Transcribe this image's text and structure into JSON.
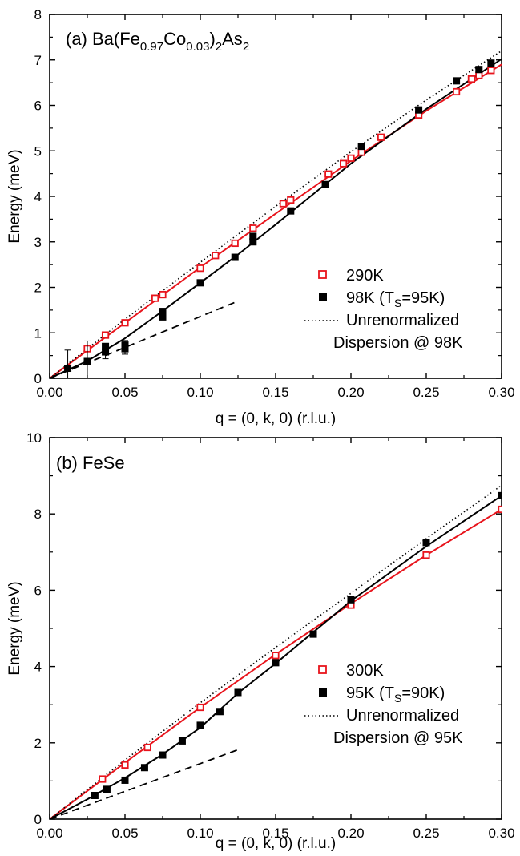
{
  "chart_data": [
    {
      "type": "scatter",
      "panel": "(a)",
      "title_parts": {
        "prefix": "(a) Ba(Fe",
        "sub1": "0.97",
        "mid": "Co",
        "sub2": "0.03",
        "close": ")",
        "sub3": "2",
        "suffix": "As",
        "sub4": "2"
      },
      "xlabel": "q = (0, k, 0) (r.l.u.)",
      "ylabel": "Energy (meV)",
      "xlim": [
        0.0,
        0.3
      ],
      "ylim": [
        0,
        8
      ],
      "xticks": [
        "0.00",
        "0.05",
        "0.10",
        "0.15",
        "0.20",
        "0.25",
        "0.30"
      ],
      "yticks": [
        "0",
        "1",
        "2",
        "3",
        "4",
        "5",
        "6",
        "7",
        "8"
      ],
      "series": [
        {
          "name": "290K",
          "color": "#e8141c",
          "marker": "open-square",
          "points": [
            [
              0.025,
              0.65
            ],
            [
              0.037,
              0.95
            ],
            [
              0.05,
              1.22
            ],
            [
              0.07,
              1.76
            ],
            [
              0.075,
              1.84
            ],
            [
              0.1,
              2.42
            ],
            [
              0.11,
              2.7
            ],
            [
              0.123,
              2.97
            ],
            [
              0.135,
              3.3
            ],
            [
              0.155,
              3.84
            ],
            [
              0.16,
              3.92
            ],
            [
              0.185,
              4.49
            ],
            [
              0.195,
              4.72
            ],
            [
              0.2,
              4.84
            ],
            [
              0.207,
              4.97
            ],
            [
              0.22,
              5.3
            ],
            [
              0.245,
              5.79
            ],
            [
              0.27,
              6.3
            ],
            [
              0.28,
              6.58
            ],
            [
              0.285,
              6.66
            ],
            [
              0.293,
              6.77
            ]
          ],
          "fit": [
            [
              0.0,
              0.0
            ],
            [
              0.05,
              1.22
            ],
            [
              0.1,
              2.44
            ],
            [
              0.15,
              3.62
            ],
            [
              0.2,
              4.78
            ],
            [
              0.25,
              5.88
            ],
            [
              0.3,
              6.9
            ]
          ]
        },
        {
          "name": "98K (T",
          "name_sub": "S",
          "name_suffix": "=95K)",
          "color": "#000000",
          "marker": "filled-square",
          "points": [
            [
              0.012,
              0.22
            ],
            [
              0.025,
              0.37
            ],
            [
              0.037,
              0.58
            ],
            [
              0.037,
              0.7
            ],
            [
              0.05,
              0.65
            ],
            [
              0.05,
              0.73
            ],
            [
              0.075,
              1.35
            ],
            [
              0.075,
              1.47
            ],
            [
              0.1,
              2.1
            ],
            [
              0.123,
              2.66
            ],
            [
              0.135,
              3.0
            ],
            [
              0.135,
              3.12
            ],
            [
              0.16,
              3.68
            ],
            [
              0.183,
              4.26
            ],
            [
              0.207,
              5.1
            ],
            [
              0.245,
              5.9
            ],
            [
              0.27,
              6.54
            ],
            [
              0.285,
              6.79
            ],
            [
              0.293,
              6.93
            ]
          ],
          "error_bars": [
            [
              0.012,
              0.22,
              0.4
            ],
            [
              0.025,
              0.37,
              0.45
            ],
            [
              0.037,
              0.58,
              0.15
            ],
            [
              0.05,
              0.65,
              0.12
            ],
            [
              0.05,
              0.73,
              0.1
            ]
          ],
          "fit": [
            [
              0.0,
              0.0
            ],
            [
              0.025,
              0.38
            ],
            [
              0.05,
              0.88
            ],
            [
              0.075,
              1.48
            ],
            [
              0.1,
              2.1
            ],
            [
              0.125,
              2.72
            ],
            [
              0.15,
              3.38
            ],
            [
              0.2,
              4.72
            ],
            [
              0.25,
              5.92
            ],
            [
              0.3,
              7.02
            ]
          ],
          "low_q_line": [
            [
              0.0,
              0.0
            ],
            [
              0.123,
              1.67
            ]
          ]
        },
        {
          "name": "Unrenormalized",
          "name_line2": "Dispersion @ 98K",
          "color": "#000000",
          "style": "dotted",
          "line": [
            [
              0.0,
              0.0
            ],
            [
              0.05,
              1.3
            ],
            [
              0.1,
              2.55
            ],
            [
              0.15,
              3.78
            ],
            [
              0.2,
              4.98
            ],
            [
              0.25,
              6.12
            ],
            [
              0.3,
              7.2
            ]
          ]
        }
      ],
      "legend_position": "lower-right",
      "grid": false
    },
    {
      "type": "scatter",
      "panel": "(b)",
      "title": "(b) FeSe",
      "xlabel": "q = (0, k, 0) (r.l.u.)",
      "ylabel": "Energy (meV)",
      "xlim": [
        0.0,
        0.3
      ],
      "ylim": [
        0,
        10
      ],
      "xticks": [
        "0.00",
        "0.05",
        "0.10",
        "0.15",
        "0.20",
        "0.25",
        "0.30"
      ],
      "yticks": [
        "0",
        "2",
        "4",
        "6",
        "8",
        "10"
      ],
      "series": [
        {
          "name": "300K",
          "color": "#e8141c",
          "marker": "open-square",
          "points": [
            [
              0.035,
              1.05
            ],
            [
              0.05,
              1.42
            ],
            [
              0.065,
              1.88
            ],
            [
              0.1,
              2.93
            ],
            [
              0.15,
              4.29
            ],
            [
              0.2,
              5.61
            ],
            [
              0.25,
              6.92
            ],
            [
              0.3,
              8.12
            ]
          ],
          "fit": [
            [
              0.0,
              0.0
            ],
            [
              0.05,
              1.48
            ],
            [
              0.1,
              2.93
            ],
            [
              0.15,
              4.32
            ],
            [
              0.2,
              5.65
            ],
            [
              0.25,
              6.92
            ],
            [
              0.3,
              8.12
            ]
          ]
        },
        {
          "name": "95K (T",
          "name_sub": "S",
          "name_suffix": "=90K)",
          "color": "#000000",
          "marker": "filled-square",
          "points": [
            [
              0.03,
              0.62
            ],
            [
              0.038,
              0.78
            ],
            [
              0.05,
              1.02
            ],
            [
              0.063,
              1.35
            ],
            [
              0.075,
              1.68
            ],
            [
              0.088,
              2.05
            ],
            [
              0.1,
              2.46
            ],
            [
              0.113,
              2.82
            ],
            [
              0.125,
              3.32
            ],
            [
              0.15,
              4.1
            ],
            [
              0.175,
              4.85
            ],
            [
              0.2,
              5.75
            ],
            [
              0.25,
              7.25
            ],
            [
              0.3,
              8.48
            ]
          ],
          "fit": [
            [
              0.0,
              0.0
            ],
            [
              0.025,
              0.52
            ],
            [
              0.05,
              1.08
            ],
            [
              0.075,
              1.7
            ],
            [
              0.1,
              2.4
            ],
            [
              0.125,
              3.3
            ],
            [
              0.15,
              4.08
            ],
            [
              0.2,
              5.72
            ],
            [
              0.25,
              7.15
            ],
            [
              0.3,
              8.48
            ]
          ],
          "low_q_line": [
            [
              0.0,
              0.0
            ],
            [
              0.125,
              1.82
            ]
          ]
        },
        {
          "name": "Unrenormalized",
          "name_line2": "Dispersion @ 95K",
          "color": "#000000",
          "style": "dotted",
          "line": [
            [
              0.0,
              0.0
            ],
            [
              0.05,
              1.55
            ],
            [
              0.1,
              3.05
            ],
            [
              0.15,
              4.5
            ],
            [
              0.2,
              5.92
            ],
            [
              0.25,
              7.35
            ],
            [
              0.3,
              8.75
            ]
          ]
        }
      ],
      "legend_position": "lower-right",
      "grid": false
    }
  ]
}
